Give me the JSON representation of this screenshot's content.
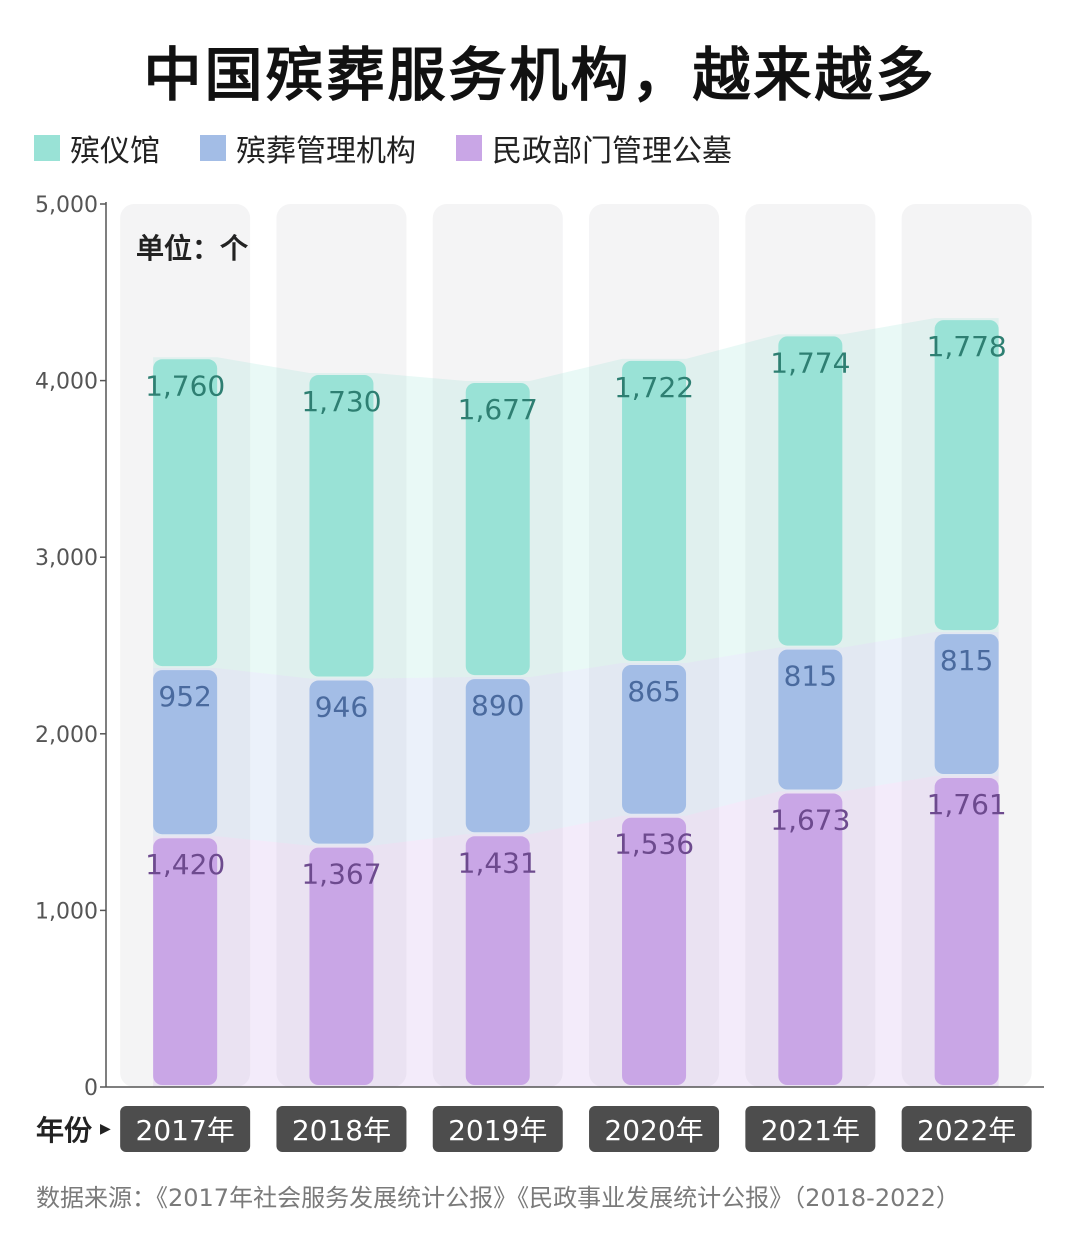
{
  "title": "中国殡葬服务机构，越来越多",
  "unit_label": "单位：个",
  "year_label": "年份",
  "source": "数据来源：《2017年社会服务发展统计公报》《民政事业发展统计公报》（2018-2022）",
  "colors": {
    "funeral_home": "#99e2d6",
    "management": "#a3bde6",
    "cemetery": "#c9a6e6",
    "funeral_home_text": "#2e7f72",
    "management_text": "#4a6a9e",
    "cemetery_text": "#6d4a8e",
    "column_bg": "#f4f4f5",
    "year_tag": "#4d4d4d"
  },
  "chart_data": {
    "type": "bar",
    "stacked": true,
    "categories": [
      "2017年",
      "2018年",
      "2019年",
      "2020年",
      "2021年",
      "2022年"
    ],
    "series": [
      {
        "name": "民政部门管理公墓",
        "values": [
          1420,
          1367,
          1431,
          1536,
          1673,
          1761
        ],
        "labels": [
          "1,420",
          "1,367",
          "1,431",
          "1,536",
          "1,673",
          "1,761"
        ]
      },
      {
        "name": "殡葬管理机构",
        "values": [
          952,
          946,
          890,
          865,
          815,
          815
        ],
        "labels": [
          "952",
          "946",
          "890",
          "865",
          "815",
          "815"
        ]
      },
      {
        "name": "殡仪馆",
        "values": [
          1760,
          1730,
          1677,
          1722,
          1774,
          1778
        ],
        "labels": [
          "1,760",
          "1,730",
          "1,677",
          "1,722",
          "1,774",
          "1,778"
        ]
      }
    ],
    "legend": [
      "殡仪馆",
      "殡葬管理机构",
      "民政部门管理公墓"
    ],
    "legend_position": "top-left",
    "yticks": [
      "0",
      "1,000",
      "2,000",
      "3,000",
      "4,000",
      "5,000"
    ],
    "ytick_values": [
      0,
      1000,
      2000,
      3000,
      4000,
      5000
    ],
    "ylim": [
      0,
      5000
    ],
    "grid": false
  }
}
